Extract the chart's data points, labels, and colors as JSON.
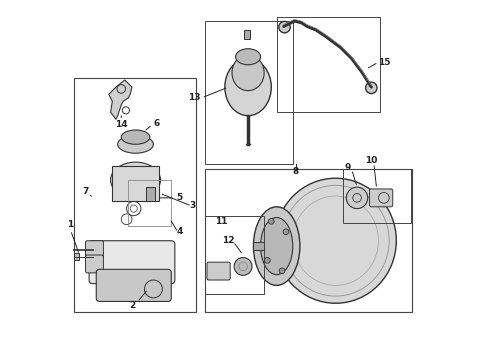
{
  "bg_color": "#ffffff",
  "line_color": "#333333",
  "label_color": "#222222",
  "fig_width": 4.89,
  "fig_height": 3.6,
  "dpi": 100,
  "fs": 6.5
}
